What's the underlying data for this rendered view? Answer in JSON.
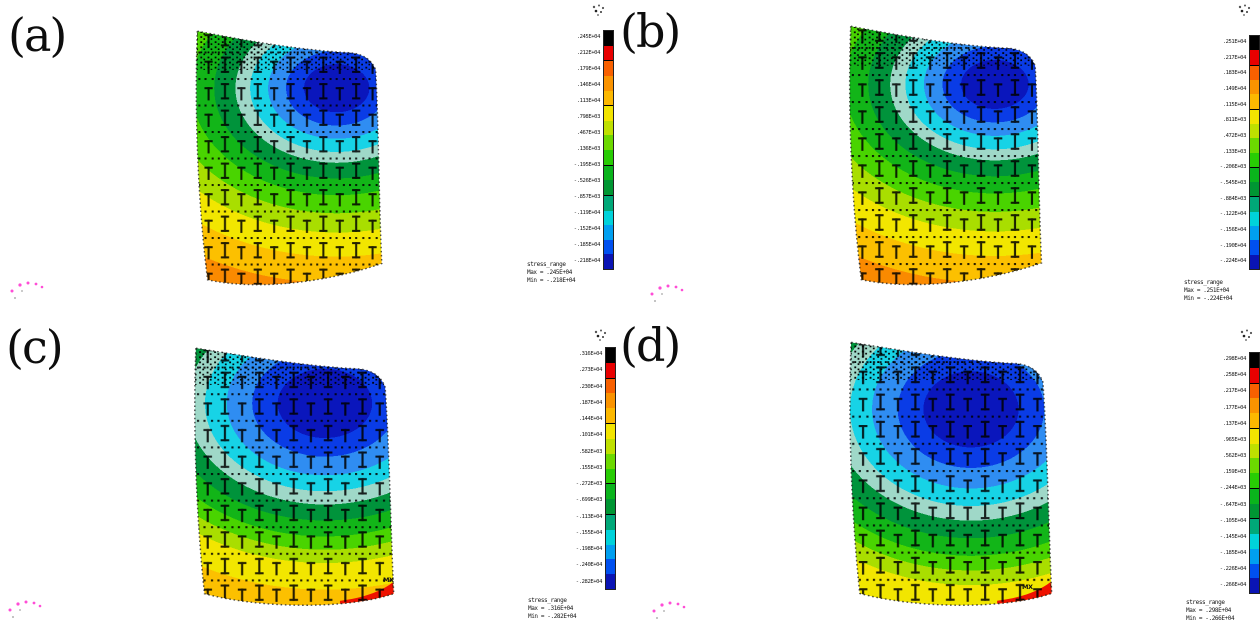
{
  "figure": {
    "type": "fea-contour-figure",
    "panels": [
      {
        "id": "a",
        "caption": "(a)",
        "mx_label": "",
        "legend": {
          "ticks": [
            ".245E+04",
            ".212E+04",
            ".179E+04",
            ".146E+04",
            ".113E+04",
            ".798E+03",
            ".467E+03",
            ".136E+03",
            "-.195E+03",
            "-.526E+03",
            "-.857E+03",
            "-.119E+04",
            "-.152E+04",
            "-.185E+04",
            "-.218E+04"
          ],
          "footer": [
            "stress_range",
            "Max = .245E+04",
            "Min = -.218E+04"
          ]
        }
      },
      {
        "id": "b",
        "caption": "(b)",
        "mx_label": "",
        "legend": {
          "ticks": [
            ".251E+04",
            ".217E+04",
            ".183E+04",
            ".149E+04",
            ".115E+04",
            ".811E+03",
            ".472E+03",
            ".133E+03",
            "-.206E+03",
            "-.545E+03",
            "-.884E+03",
            "-.122E+04",
            "-.156E+04",
            "-.190E+04",
            "-.224E+04"
          ],
          "footer": [
            "stress_range",
            "Max = .251E+04",
            "Min = -.224E+04"
          ]
        }
      },
      {
        "id": "c",
        "caption": "(c)",
        "mx_label": "MX",
        "legend": {
          "ticks": [
            ".316E+04",
            ".273E+04",
            ".230E+04",
            ".187E+04",
            ".144E+04",
            ".101E+04",
            ".582E+03",
            ".155E+03",
            "-.272E+03",
            "-.699E+03",
            "-.113E+04",
            "-.155E+04",
            "-.198E+04",
            "-.240E+04",
            "-.282E+04"
          ],
          "footer": [
            "stress_range",
            "Max = .316E+04",
            "Min = -.282E+04"
          ]
        }
      },
      {
        "id": "d",
        "caption": "(d)",
        "mx_label": "MX",
        "legend": {
          "ticks": [
            ".298E+04",
            ".258E+04",
            ".217E+04",
            ".177E+04",
            ".137E+04",
            ".965E+03",
            ".562E+03",
            ".159E+03",
            "-.244E+03",
            "-.647E+03",
            "-.105E+04",
            "-.145E+04",
            "-.185E+04",
            "-.226E+04",
            "-.266E+04"
          ],
          "footer": [
            "stress_range",
            "Max = .298E+04",
            "Min = -.266E+04"
          ]
        }
      }
    ]
  },
  "colorbar": {
    "segment_colors": [
      "#000000",
      "#e80000",
      "#f86000",
      "#fa9300",
      "#fcb800",
      "#f2e400",
      "#bfe000",
      "#6cd800",
      "#28cc04",
      "#0ab41c",
      "#009633",
      "#00a878",
      "#00d2da",
      "#009ff0",
      "#0050f0",
      "#0a14b4"
    ],
    "bold_boundaries": [
      2,
      5,
      9,
      11
    ]
  },
  "contour": {
    "band_colors": {
      "navy": "#0a16bc",
      "blue": "#0a3ce6",
      "sky": "#2f8df2",
      "cyan": "#17d3e6",
      "paleteal": "#9fd8c8",
      "dgreen": "#00933b",
      "green": "#12b518",
      "lgreen": "#49d400",
      "ygreen": "#a9de00",
      "yellow": "#f2e600",
      "amber": "#fcc000",
      "orange": "#fa8a00",
      "red": "#ee1200"
    }
  },
  "marks": {
    "mesh_color": "#000000",
    "triad_color": "#ff2fd0",
    "edge_color": "#1a1a1a"
  },
  "icons": {
    "legend_header_glyph": "compass-dots",
    "triad_glyph": "magenta-axis-dots"
  }
}
